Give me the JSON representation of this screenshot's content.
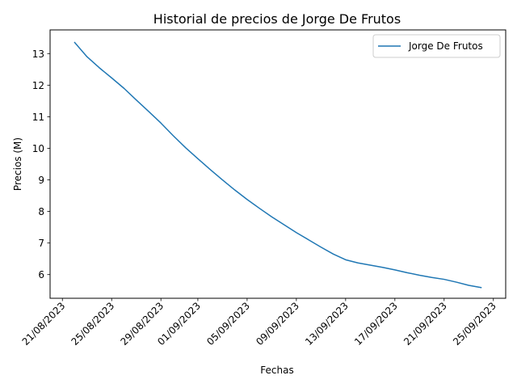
{
  "chart_data": {
    "type": "line",
    "title": "Historial de precios de Jorge De Frutos",
    "xlabel": "Fechas",
    "ylabel": "Precios (M)",
    "xlim": [
      "2023-08-20",
      "2023-09-26"
    ],
    "ylim": [
      5.25,
      13.75
    ],
    "x_ticks": [
      {
        "date": "2023-08-21",
        "label": "21/08/2023"
      },
      {
        "date": "2023-08-25",
        "label": "25/08/2023"
      },
      {
        "date": "2023-08-29",
        "label": "29/08/2023"
      },
      {
        "date": "2023-09-01",
        "label": "01/09/2023"
      },
      {
        "date": "2023-09-05",
        "label": "05/09/2023"
      },
      {
        "date": "2023-09-09",
        "label": "09/09/2023"
      },
      {
        "date": "2023-09-13",
        "label": "13/09/2023"
      },
      {
        "date": "2023-09-17",
        "label": "17/09/2023"
      },
      {
        "date": "2023-09-21",
        "label": "21/09/2023"
      },
      {
        "date": "2023-09-25",
        "label": "25/09/2023"
      }
    ],
    "y_ticks": [
      6,
      7,
      8,
      9,
      10,
      11,
      12,
      13
    ],
    "grid": false,
    "legend": "top-right",
    "series": [
      {
        "name": "Jorge De Frutos",
        "color": "#1f77b4",
        "points": [
          {
            "x": "2023-08-22",
            "y": 13.35
          },
          {
            "x": "2023-08-23",
            "y": 12.9
          },
          {
            "x": "2023-08-24",
            "y": 12.55
          },
          {
            "x": "2023-08-25",
            "y": 12.23
          },
          {
            "x": "2023-08-26",
            "y": 11.9
          },
          {
            "x": "2023-08-27",
            "y": 11.53
          },
          {
            "x": "2023-08-28",
            "y": 11.17
          },
          {
            "x": "2023-08-29",
            "y": 10.8
          },
          {
            "x": "2023-08-30",
            "y": 10.4
          },
          {
            "x": "2023-08-31",
            "y": 10.02
          },
          {
            "x": "2023-09-01",
            "y": 9.67
          },
          {
            "x": "2023-09-02",
            "y": 9.33
          },
          {
            "x": "2023-09-03",
            "y": 9.0
          },
          {
            "x": "2023-09-04",
            "y": 8.68
          },
          {
            "x": "2023-09-05",
            "y": 8.38
          },
          {
            "x": "2023-09-06",
            "y": 8.1
          },
          {
            "x": "2023-09-07",
            "y": 7.83
          },
          {
            "x": "2023-09-08",
            "y": 7.58
          },
          {
            "x": "2023-09-09",
            "y": 7.33
          },
          {
            "x": "2023-09-10",
            "y": 7.1
          },
          {
            "x": "2023-09-11",
            "y": 6.87
          },
          {
            "x": "2023-09-12",
            "y": 6.65
          },
          {
            "x": "2023-09-13",
            "y": 6.47
          },
          {
            "x": "2023-09-14",
            "y": 6.37
          },
          {
            "x": "2023-09-15",
            "y": 6.3
          },
          {
            "x": "2023-09-16",
            "y": 6.23
          },
          {
            "x": "2023-09-17",
            "y": 6.15
          },
          {
            "x": "2023-09-18",
            "y": 6.06
          },
          {
            "x": "2023-09-19",
            "y": 5.98
          },
          {
            "x": "2023-09-20",
            "y": 5.91
          },
          {
            "x": "2023-09-21",
            "y": 5.85
          },
          {
            "x": "2023-09-22",
            "y": 5.76
          },
          {
            "x": "2023-09-23",
            "y": 5.66
          },
          {
            "x": "2023-09-24",
            "y": 5.59
          }
        ]
      }
    ]
  }
}
